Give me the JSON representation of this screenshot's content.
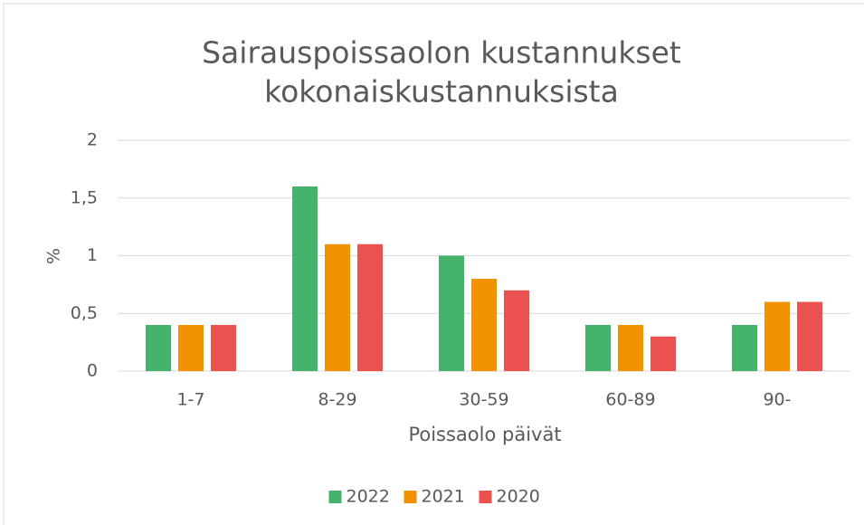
{
  "chart_data": {
    "type": "bar",
    "title": [
      "Sairauspoissaolon kustannukset",
      "kokonaiskustannuksista"
    ],
    "x_label": "Poissaolo päivät",
    "y_label": "%",
    "categories": [
      "1-7",
      "8-29",
      "30-59",
      "60-89",
      "90-"
    ],
    "series": [
      {
        "name": "2022",
        "color": "#45b36b",
        "values": [
          0.4,
          1.6,
          1.0,
          0.4,
          0.4
        ]
      },
      {
        "name": "2021",
        "color": "#f39200",
        "values": [
          0.4,
          1.1,
          0.8,
          0.4,
          0.6
        ]
      },
      {
        "name": "2020",
        "color": "#e9524f",
        "values": [
          0.4,
          1.1,
          0.7,
          0.3,
          0.6
        ]
      }
    ],
    "ylim": [
      0,
      2
    ],
    "yticks": [
      0,
      {
        "value": 0.5,
        "label": "0,5"
      },
      1,
      {
        "value": 1.5,
        "label": "1,5"
      },
      2
    ],
    "grid": true,
    "legend": "bottom"
  }
}
